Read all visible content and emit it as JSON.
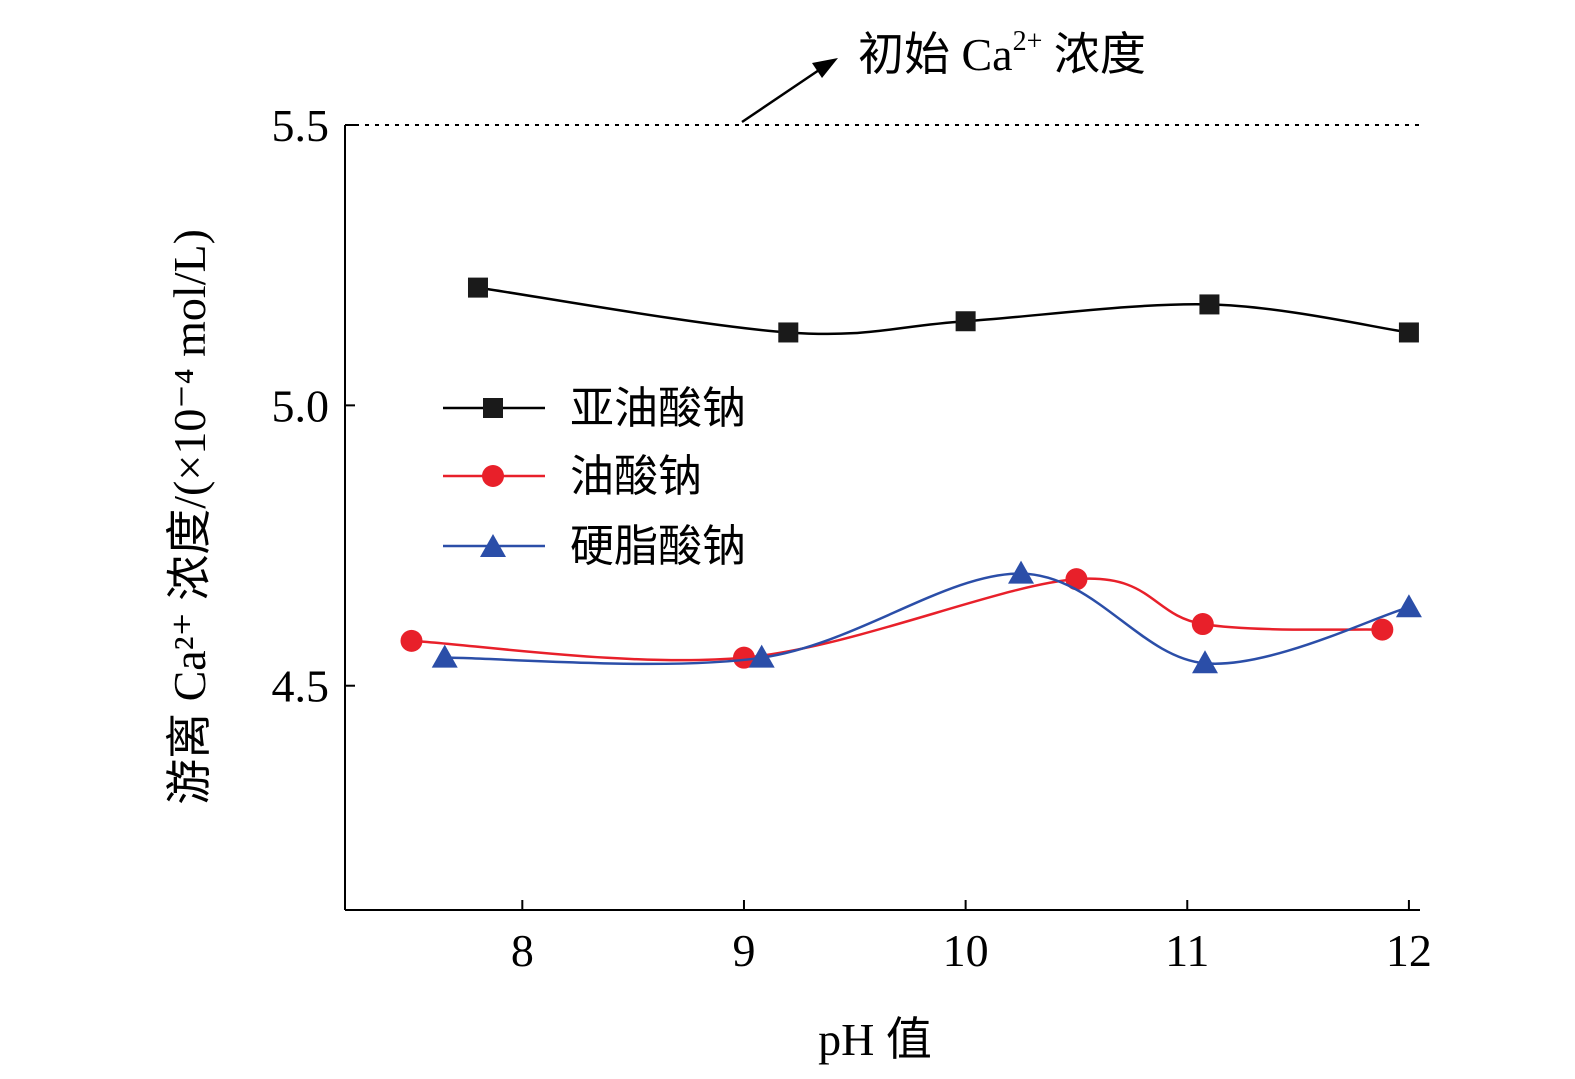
{
  "chart_data": {
    "type": "line",
    "xlabel": "pH 值",
    "ylabel": "游离 Ca²⁺ 浓度/(×10⁻⁴ mol/L)",
    "xlim": [
      7.2,
      12.05
    ],
    "ylim": [
      4.1,
      5.5
    ],
    "x_ticks": [
      8,
      9,
      10,
      11,
      12
    ],
    "y_ticks": [
      4.5,
      5.0,
      5.5
    ],
    "y_tick_labels": [
      "4.5",
      "5.0",
      "5.5"
    ],
    "grid": false,
    "legend_position": "center-left",
    "reference_line": {
      "y": 5.5,
      "label_main": "初始 Ca",
      "label_sup": "2+",
      "label_tail": " 浓度"
    },
    "series": [
      {
        "name": "亚油酸钠",
        "color": "#000000",
        "marker": "square",
        "x": [
          7.8,
          9.2,
          10.0,
          11.1,
          12.0
        ],
        "y": [
          5.21,
          5.13,
          5.15,
          5.18,
          5.13
        ]
      },
      {
        "name": "油酸钠",
        "color": "#e8202a",
        "marker": "circle",
        "x": [
          7.5,
          9.0,
          10.5,
          11.07,
          11.88
        ],
        "y": [
          4.58,
          4.55,
          4.69,
          4.61,
          4.6
        ]
      },
      {
        "name": "硬脂酸钠",
        "color": "#2b4ea8",
        "marker": "triangle",
        "x": [
          7.65,
          9.08,
          10.25,
          11.08,
          12.0
        ],
        "y": [
          4.55,
          4.55,
          4.7,
          4.54,
          4.64
        ]
      }
    ]
  }
}
